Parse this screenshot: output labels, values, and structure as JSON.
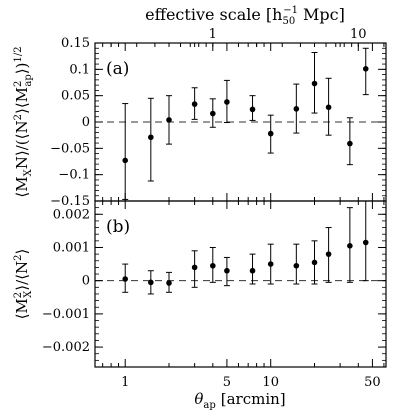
{
  "top_axis": {
    "title_main": "effective scale [h",
    "title_sub": "50",
    "title_sup": "−1",
    "title_end": " Mpc]",
    "ticks": [
      {
        "value": 1,
        "label": "1"
      },
      {
        "value": 10,
        "label": "10"
      }
    ],
    "theta_per_unit": 4.0
  },
  "bottom_axis": {
    "symbol": "θ",
    "subscript": "ap",
    "unit": "[arcmin]",
    "scale": "log",
    "xlim": [
      0.62,
      62
    ],
    "ticks": [
      {
        "value": 1,
        "label": "1"
      },
      {
        "value": 5,
        "label": "5"
      },
      {
        "value": 10,
        "label": "10"
      },
      {
        "value": 50,
        "label": "50"
      }
    ]
  },
  "chart_data": [
    {
      "type": "scatter",
      "panel_label": "(a)",
      "ylabel": "⟨M_X N⟩ / (⟨N²⟩⟨M²_ap⟩)^1/2",
      "ylim": [
        -0.15,
        0.15
      ],
      "yticks": [
        {
          "value": 0.15,
          "label": "0.15"
        },
        {
          "value": 0.1,
          "label": "0.1"
        },
        {
          "value": 0.05,
          "label": "0.05"
        },
        {
          "value": 0,
          "label": "0"
        },
        {
          "value": -0.05,
          "label": "−0.05"
        },
        {
          "value": -0.1,
          "label": "−0.1"
        },
        {
          "value": -0.15,
          "label": "−0.15"
        }
      ],
      "reference_line": 0,
      "points": [
        {
          "x": 1.0,
          "y": -0.073,
          "err_low": -0.147,
          "err_high": 0.035
        },
        {
          "x": 1.5,
          "y": -0.029,
          "err_low": -0.112,
          "err_high": 0.045
        },
        {
          "x": 2.0,
          "y": 0.004,
          "err_low": -0.042,
          "err_high": 0.05
        },
        {
          "x": 3.0,
          "y": 0.034,
          "err_low": 0.005,
          "err_high": 0.065
        },
        {
          "x": 4.0,
          "y": 0.016,
          "err_low": -0.01,
          "err_high": 0.044
        },
        {
          "x": 5.0,
          "y": 0.038,
          "err_low": -0.001,
          "err_high": 0.079
        },
        {
          "x": 7.5,
          "y": 0.024,
          "err_low": 0.003,
          "err_high": 0.05
        },
        {
          "x": 10.0,
          "y": -0.022,
          "err_low": -0.059,
          "err_high": 0.013
        },
        {
          "x": 15.0,
          "y": 0.025,
          "err_low": -0.021,
          "err_high": 0.072
        },
        {
          "x": 20.0,
          "y": 0.073,
          "err_low": 0.017,
          "err_high": 0.132
        },
        {
          "x": 25.0,
          "y": 0.028,
          "err_low": -0.025,
          "err_high": 0.083
        },
        {
          "x": 35.0,
          "y": -0.041,
          "err_low": -0.081,
          "err_high": 0.008
        },
        {
          "x": 45.0,
          "y": 0.101,
          "err_low": 0.052,
          "err_high": 0.14
        }
      ]
    },
    {
      "type": "scatter",
      "panel_label": "(b)",
      "ylabel": "⟨M²_X⟩ / ⟨N²⟩",
      "ylim": [
        -0.0026,
        0.0024
      ],
      "yticks": [
        {
          "value": 0.002,
          "label": "0.002"
        },
        {
          "value": 0.001,
          "label": "0.001"
        },
        {
          "value": 0,
          "label": "0"
        },
        {
          "value": -0.001,
          "label": "−0.001"
        },
        {
          "value": -0.002,
          "label": "−0.002"
        }
      ],
      "reference_line": 0,
      "points": [
        {
          "x": 1.0,
          "y": 5e-05,
          "err_low": -0.00035,
          "err_high": 0.0005
        },
        {
          "x": 1.5,
          "y": -5e-05,
          "err_low": -0.0004,
          "err_high": 0.0003
        },
        {
          "x": 2.0,
          "y": -7e-05,
          "err_low": -0.00035,
          "err_high": 0.00025
        },
        {
          "x": 3.0,
          "y": 0.0004,
          "err_low": -0.0002,
          "err_high": 0.0009
        },
        {
          "x": 4.0,
          "y": 0.00045,
          "err_low": -5e-05,
          "err_high": 0.001
        },
        {
          "x": 5.0,
          "y": 0.0003,
          "err_low": -0.00015,
          "err_high": 0.0007
        },
        {
          "x": 7.5,
          "y": 0.0003,
          "err_low": -0.0001,
          "err_high": 0.0008
        },
        {
          "x": 10.0,
          "y": 0.0005,
          "err_low": -0.0001,
          "err_high": 0.0011
        },
        {
          "x": 15.0,
          "y": 0.00045,
          "err_low": -0.0001,
          "err_high": 0.0011
        },
        {
          "x": 20.0,
          "y": 0.00055,
          "err_low": -0.0001,
          "err_high": 0.0012
        },
        {
          "x": 25.0,
          "y": 0.0008,
          "err_low": -5e-05,
          "err_high": 0.0016
        },
        {
          "x": 35.0,
          "y": 0.00105,
          "err_low": -5e-05,
          "err_high": 0.0022
        },
        {
          "x": 45.0,
          "y": 0.00115,
          "err_low": 0.0,
          "err_high": 0.0024
        }
      ]
    }
  ]
}
